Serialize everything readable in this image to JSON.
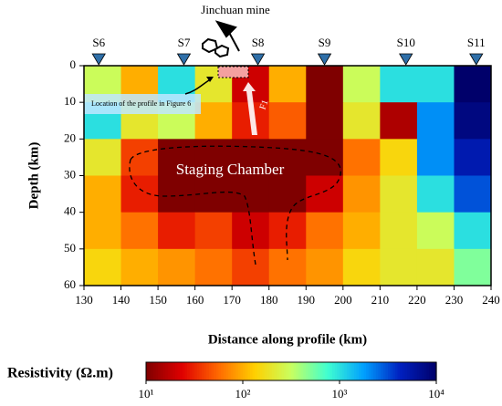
{
  "chart_data": {
    "type": "heatmap",
    "xlabel": "Distance along profile (km)",
    "ylabel": "Depth (km)",
    "xbins": [
      130,
      140,
      150,
      160,
      170,
      180,
      190,
      200,
      210,
      220,
      230,
      240
    ],
    "ybins": [
      0,
      10,
      20,
      30,
      40,
      50,
      60
    ],
    "values": [
      [
        300,
        100,
        1000,
        200,
        20,
        100,
        10,
        300,
        1000,
        1000,
        10000
      ],
      [
        1000,
        200,
        300,
        100,
        30,
        50,
        10,
        200,
        15,
        2000,
        8000
      ],
      [
        200,
        40,
        10,
        10,
        10,
        10,
        10,
        60,
        150,
        2000,
        5000
      ],
      [
        100,
        30,
        10,
        10,
        10,
        10,
        20,
        80,
        200,
        1000,
        3000
      ],
      [
        100,
        60,
        30,
        40,
        20,
        30,
        60,
        100,
        200,
        300,
        1000
      ],
      [
        150,
        100,
        80,
        60,
        40,
        60,
        80,
        150,
        200,
        200,
        500
      ]
    ],
    "xlim": [
      130,
      240
    ],
    "xticks": [
      130,
      140,
      150,
      160,
      170,
      180,
      190,
      200,
      210,
      220,
      230,
      240
    ],
    "ylim": [
      0,
      60
    ],
    "yticks": [
      0,
      10,
      20,
      30,
      40,
      50,
      60
    ],
    "y_inverted": true,
    "colormap": [
      "#7f0000",
      "#e00000",
      "#ff6a00",
      "#ffd000",
      "#c8ff60",
      "#40ffd0",
      "#00a0ff",
      "#0020c0",
      "#00006a"
    ],
    "colorbar": {
      "label": "Resistivity (Ω.m)",
      "lim": [
        10,
        10000
      ],
      "log": true,
      "ticks": [
        {
          "value": 10,
          "label": "10¹"
        },
        {
          "value": 100,
          "label": "10²"
        },
        {
          "value": 1000,
          "label": "10³"
        },
        {
          "value": 10000,
          "label": "10⁴"
        }
      ]
    },
    "stations": [
      {
        "label": "S6",
        "x": 134
      },
      {
        "label": "S7",
        "x": 157
      },
      {
        "label": "S8",
        "x": 177
      },
      {
        "label": "S9",
        "x": 195
      },
      {
        "label": "S10",
        "x": 217
      },
      {
        "label": "S11",
        "x": 236
      }
    ],
    "annotations": {
      "mine": "Jinchuan mine",
      "location": "Location of the profile in Figure 6",
      "chamber": "Staging Chamber",
      "fault": "F1"
    }
  }
}
